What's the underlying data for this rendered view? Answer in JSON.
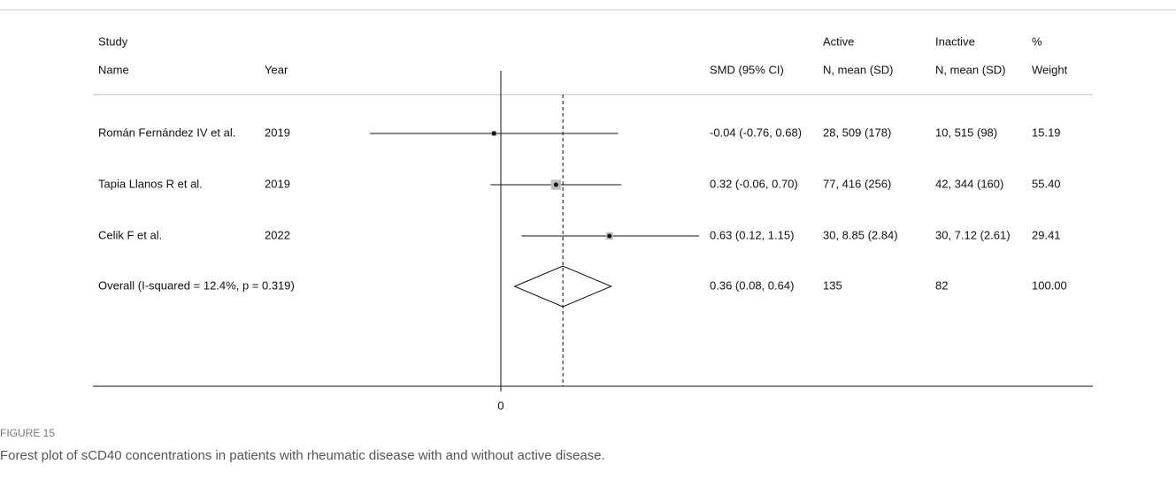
{
  "chart_data": {
    "type": "forest",
    "header_top": {
      "study": "Study",
      "active": "Active",
      "inactive": "Inactive",
      "weight": "%"
    },
    "header_bottom": {
      "name": "Name",
      "year": "Year",
      "estimate": "SMD (95% CI)",
      "active": "N, mean  (SD)",
      "inactive": "N, mean (SD)",
      "weight": "Weight"
    },
    "categories": [
      "Román Fernández IV et al.",
      "Tapia Llanos R et al.",
      "Celik F et al."
    ],
    "years": [
      2019,
      2019,
      2022
    ],
    "values": [
      -0.04,
      0.32,
      0.63
    ],
    "lower": [
      -0.76,
      -0.06,
      0.12
    ],
    "upper": [
      0.68,
      0.7,
      1.15
    ],
    "value_labels": [
      "-0.04 (-0.76, 0.68)",
      "0.32 (-0.06, 0.70)",
      "0.63 (0.12, 1.15)"
    ],
    "active": [
      "28, 509 (178)",
      "77, 416 (256)",
      "30, 8.85 (2.84)"
    ],
    "inactive": [
      "10, 515 (98)",
      "42, 344 (160)",
      "30, 7.12 (2.61)"
    ],
    "weights": [
      15.19,
      55.4,
      29.41
    ],
    "weight_labels": [
      "15.19",
      "55.40",
      "29.41"
    ],
    "overall": {
      "name": "Overall  (I-squared = 12.4%, p = 0.319)",
      "value": 0.36,
      "lower": 0.08,
      "upper": 0.64,
      "value_label": "0.36 (0.08, 0.64)",
      "active": "135",
      "inactive": "82",
      "weight": 100,
      "weight_label": "100.00"
    },
    "xlim": [
      -0.76,
      1.15
    ],
    "xticks": [
      0
    ],
    "figure_label": "FIGURE 15",
    "caption": "Forest plot of sCD40 concentrations in patients with rheumatic disease with and without active disease."
  }
}
